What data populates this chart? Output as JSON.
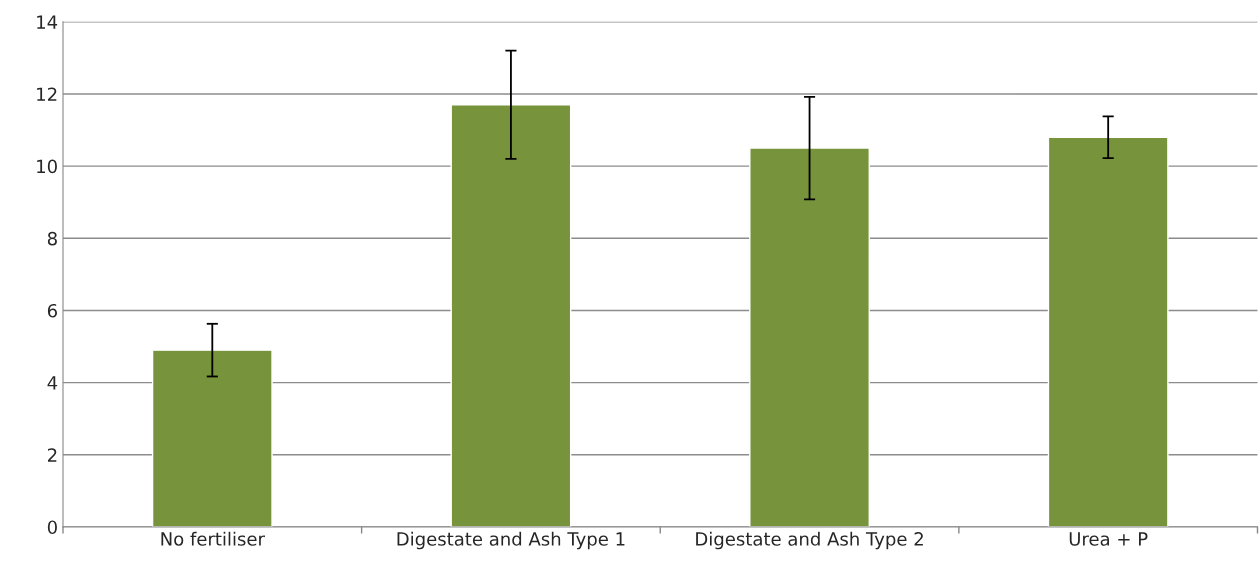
{
  "chart_data": {
    "type": "bar",
    "categories": [
      "No fertiliser",
      "Digestate and Ash Type 1",
      "Digestate and Ash Type 2",
      "Urea + P"
    ],
    "values": [
      4.9,
      11.7,
      10.5,
      10.8
    ],
    "errors": [
      0.73,
      1.5,
      1.42,
      0.58
    ],
    "color": "#77933c",
    "ylim": [
      0,
      14
    ],
    "yticks": [
      0,
      2,
      4,
      6,
      8,
      10,
      12,
      14
    ],
    "grid": "y"
  }
}
